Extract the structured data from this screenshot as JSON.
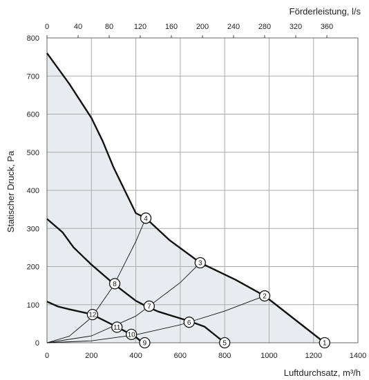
{
  "chart_data": {
    "type": "line",
    "title": "",
    "xlabel": "Luftdurchsatz, m³/h",
    "x2label": "Förderleistung, l/s",
    "ylabel": "Statischer Druck, Pa",
    "xlim": [
      0,
      1400
    ],
    "ylim": [
      0,
      800
    ],
    "x2lim": [
      0,
      400
    ],
    "x_ticks": [
      "0",
      "200",
      "400",
      "600",
      "800",
      "1000",
      "1200",
      "1400"
    ],
    "x2_ticks": [
      "0",
      "40",
      "80",
      "120",
      "160",
      "200",
      "240",
      "280",
      "320",
      "360"
    ],
    "y_ticks": [
      "0",
      "100",
      "200",
      "300",
      "400",
      "500",
      "600",
      "700",
      "800"
    ],
    "grid": true,
    "fan_curves": [
      {
        "x": [
          0,
          100,
          200,
          250,
          300,
          350,
          400,
          445,
          550,
          690,
          850,
          980,
          1250
        ],
        "y": [
          760,
          680,
          590,
          530,
          460,
          400,
          340,
          327,
          270,
          210,
          165,
          123,
          0
        ]
      },
      {
        "x": [
          0,
          70,
          120,
          200,
          300,
          400,
          450,
          500,
          650,
          710,
          800
        ],
        "y": [
          325,
          290,
          250,
          205,
          155,
          110,
          95,
          82,
          55,
          42,
          0
        ]
      },
      {
        "x": [
          0,
          50,
          100,
          200,
          310,
          400,
          430
        ],
        "y": [
          108,
          95,
          88,
          75,
          43,
          15,
          0
        ]
      }
    ],
    "system_curves": [
      {
        "x": [
          0,
          100,
          200,
          300,
          400,
          445
        ],
        "y": [
          0,
          17,
          66,
          150,
          266,
          327
        ]
      },
      {
        "x": [
          0,
          200,
          400,
          600,
          690
        ],
        "y": [
          0,
          18,
          70,
          158,
          210
        ]
      },
      {
        "x": [
          0,
          200,
          400,
          600,
          800,
          980
        ],
        "y": [
          0,
          5,
          21,
          47,
          83,
          123
        ]
      }
    ],
    "markers": [
      {
        "label": "1",
        "x": 1250,
        "y": 0
      },
      {
        "label": "2",
        "x": 980,
        "y": 123
      },
      {
        "label": "3",
        "x": 690,
        "y": 210
      },
      {
        "label": "4",
        "x": 445,
        "y": 327
      },
      {
        "label": "5",
        "x": 800,
        "y": 0
      },
      {
        "label": "6",
        "x": 640,
        "y": 54
      },
      {
        "label": "7",
        "x": 460,
        "y": 96
      },
      {
        "label": "8",
        "x": 305,
        "y": 155
      },
      {
        "label": "9",
        "x": 440,
        "y": 0
      },
      {
        "label": "10",
        "x": 380,
        "y": 22
      },
      {
        "label": "11",
        "x": 315,
        "y": 41
      },
      {
        "label": "12",
        "x": 205,
        "y": 74
      }
    ],
    "colors": {
      "fill": "#e8ebf0",
      "curve": "#111111",
      "grid": "#aaaaaa",
      "system": "#111111"
    }
  }
}
